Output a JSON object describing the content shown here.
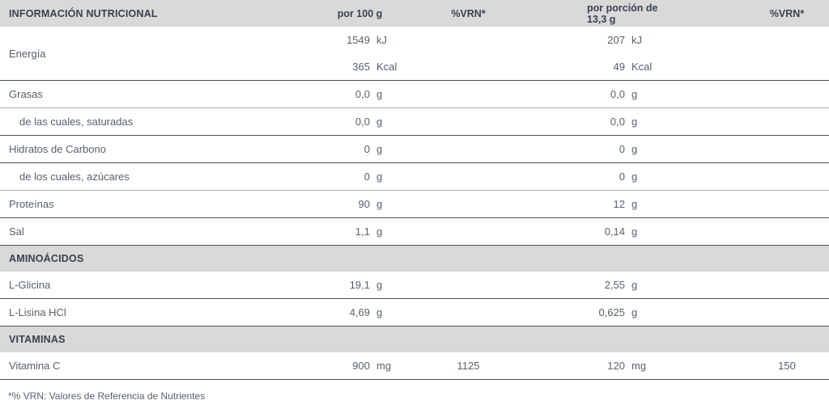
{
  "colors": {
    "band_bg": "#d9d9d9",
    "border_dark": "#4f4f4f",
    "border_light": "#aeaeae",
    "heading_text": "#39424e",
    "body_text": "#57616b"
  },
  "table": {
    "header": {
      "label": "INFORMACIÓN NUTRICIONAL",
      "per100": "por 100 g",
      "vrn_a": "%VRN*",
      "portion": "por porción de 13,3 g",
      "vrn_b": "%VRN*"
    },
    "rows": [
      {
        "type": "data",
        "label": "Energía",
        "indent": false,
        "per100": [
          {
            "value": "1549",
            "unit": "kJ"
          },
          {
            "value": "365",
            "unit": "Kcal"
          }
        ],
        "vrn_per100": "",
        "portion": [
          {
            "value": "207",
            "unit": "kJ"
          },
          {
            "value": "49",
            "unit": "Kcal"
          }
        ],
        "vrn_portion": "",
        "divider": "dark"
      },
      {
        "type": "data",
        "label": "Grasas",
        "indent": false,
        "per100": [
          {
            "value": "0,0",
            "unit": "g"
          }
        ],
        "vrn_per100": "",
        "portion": [
          {
            "value": "0,0",
            "unit": "g"
          }
        ],
        "vrn_portion": "",
        "divider": "light"
      },
      {
        "type": "data",
        "label": "de las cuales, saturadas",
        "indent": true,
        "per100": [
          {
            "value": "0,0",
            "unit": "g"
          }
        ],
        "vrn_per100": "",
        "portion": [
          {
            "value": "0,0",
            "unit": "g"
          }
        ],
        "vrn_portion": "",
        "divider": "dark"
      },
      {
        "type": "data",
        "label": "Hidratos de Carbono",
        "indent": false,
        "per100": [
          {
            "value": "0",
            "unit": "g"
          }
        ],
        "vrn_per100": "",
        "portion": [
          {
            "value": "0",
            "unit": "g"
          }
        ],
        "vrn_portion": "",
        "divider": "dark"
      },
      {
        "type": "data",
        "label": "de los cuales, azúcares",
        "indent": true,
        "per100": [
          {
            "value": "0",
            "unit": "g"
          }
        ],
        "vrn_per100": "",
        "portion": [
          {
            "value": "0",
            "unit": "g"
          }
        ],
        "vrn_portion": "",
        "divider": "light"
      },
      {
        "type": "data",
        "label": "Proteínas",
        "indent": false,
        "per100": [
          {
            "value": "90",
            "unit": "g"
          }
        ],
        "vrn_per100": "",
        "portion": [
          {
            "value": "12",
            "unit": "g"
          }
        ],
        "vrn_portion": "",
        "divider": "dark"
      },
      {
        "type": "data",
        "label": "Sal",
        "indent": false,
        "per100": [
          {
            "value": "1,1",
            "unit": "g"
          }
        ],
        "vrn_per100": "",
        "portion": [
          {
            "value": "0,14",
            "unit": "g"
          }
        ],
        "vrn_portion": "",
        "divider": "none"
      },
      {
        "type": "section",
        "label": "AMINOÁCIDOS"
      },
      {
        "type": "data",
        "label": "L-Glicina",
        "indent": false,
        "per100": [
          {
            "value": "19,1",
            "unit": "g"
          }
        ],
        "vrn_per100": "",
        "portion": [
          {
            "value": "2,55",
            "unit": "g"
          }
        ],
        "vrn_portion": "",
        "divider": "dark"
      },
      {
        "type": "data",
        "label": "L-Lisina HCl",
        "indent": false,
        "per100": [
          {
            "value": "4,69",
            "unit": "g"
          }
        ],
        "vrn_per100": "",
        "portion": [
          {
            "value": "0,625",
            "unit": "g"
          }
        ],
        "vrn_portion": "",
        "divider": "none"
      },
      {
        "type": "section",
        "label": "VITAMINAS"
      },
      {
        "type": "data",
        "label": "Vitamina C",
        "indent": false,
        "per100": [
          {
            "value": "900",
            "unit": "mg"
          }
        ],
        "vrn_per100": "1125",
        "portion": [
          {
            "value": "120",
            "unit": "mg"
          }
        ],
        "vrn_portion": "150",
        "divider": "dark"
      }
    ],
    "footnote": "*% VRN: Valores de Referencia de Nutrientes"
  }
}
